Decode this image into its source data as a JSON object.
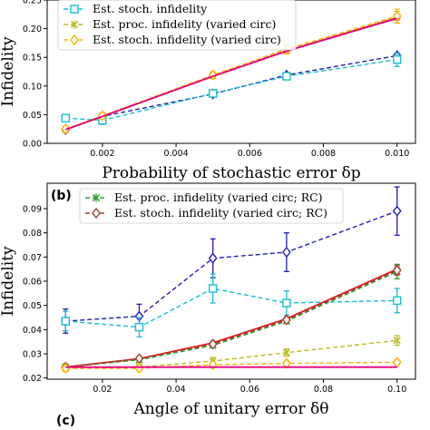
{
  "chart_data": [
    {
      "type": "line",
      "panel_label": "",
      "xlabel": "Probability of stochastic error δp",
      "ylabel": "Infidelity",
      "xlim": [
        0.0005,
        0.0105
      ],
      "ylim": [
        0.0,
        0.25
      ],
      "xticks": [
        "0.002",
        "0.004",
        "0.006",
        "0.008",
        "0.010"
      ],
      "xtick_values": [
        0.002,
        0.004,
        0.006,
        0.008,
        0.01
      ],
      "yticks": [
        "0.00",
        "0.05",
        "0.10",
        "0.15",
        "0.20",
        "0.25"
      ],
      "ytick_values": [
        0.0,
        0.05,
        0.1,
        0.15,
        0.2,
        0.25
      ],
      "legend_placement": "top-left",
      "legend": [
        {
          "label": "Est. stoch. infidelity",
          "color": "#17becf",
          "marker": "square",
          "series_index": 1
        },
        {
          "label": "Est. proc. infidelity (varied circ)",
          "color": "#bcbd22",
          "marker": "x",
          "series_index": 3
        },
        {
          "label": "Est. stoch. infidelity (varied circ)",
          "color": "#ffb000",
          "marker": "diamond",
          "series_index": 4
        }
      ],
      "x": [
        0.001,
        0.002,
        0.005,
        0.007,
        0.01
      ],
      "series": [
        {
          "color": "#1f1fb4",
          "dash": true,
          "marker": "diamond",
          "values": [
            0.024,
            0.047,
            0.086,
            0.119,
            0.153
          ],
          "err": [
            0,
            0,
            0,
            0,
            0
          ]
        },
        {
          "color": "#17becf",
          "dash": true,
          "marker": "square",
          "values": [
            0.044,
            0.04,
            0.087,
            0.117,
            0.146
          ],
          "err": [
            0.005,
            0.007,
            0.005,
            0.005,
            0.012
          ]
        },
        {
          "color": "#e31a1c",
          "dash": false,
          "marker": "dot",
          "values": [
            0.024,
            0.047,
            0.117,
            0.161,
            0.219
          ],
          "err": [
            0,
            0,
            0,
            0,
            0
          ]
        },
        {
          "color": "#bcbd22",
          "dash": true,
          "marker": "x",
          "values": [
            0.024,
            0.048,
            0.118,
            0.165,
            0.22
          ],
          "err": [
            0,
            0,
            0.005,
            0.006,
            0.01
          ]
        },
        {
          "color": "#ffb000",
          "dash": true,
          "marker": "diamond",
          "values": [
            0.025,
            0.048,
            0.119,
            0.164,
            0.222
          ],
          "err": [
            0.002,
            0.003,
            0.006,
            0.008,
            0.012
          ]
        },
        {
          "color": "#e6007e",
          "dash": false,
          "marker": "none",
          "values": [
            0.024,
            0.047,
            0.117,
            0.161,
            0.218
          ],
          "err": [
            0,
            0,
            0,
            0,
            0
          ]
        }
      ]
    },
    {
      "type": "line",
      "panel_label": "(b)",
      "xlabel": "Angle of unitary error δθ",
      "ylabel": "Infidelity",
      "xlim": [
        0.005,
        0.105
      ],
      "ylim": [
        0.0195,
        0.1005
      ],
      "xticks": [
        "0.02",
        "0.04",
        "0.06",
        "0.08",
        "0.10"
      ],
      "xtick_values": [
        0.02,
        0.04,
        0.06,
        0.08,
        0.1
      ],
      "yticks": [
        "0.02",
        "0.03",
        "0.04",
        "0.05",
        "0.06",
        "0.07",
        "0.08",
        "0.09"
      ],
      "ytick_values": [
        0.02,
        0.03,
        0.04,
        0.05,
        0.06,
        0.07,
        0.08,
        0.09
      ],
      "legend_placement": "top-left",
      "legend": [
        {
          "label": "Est. proc. infidelity (varied circ; RC)",
          "color": "#2ca02c",
          "marker": "x",
          "series_index": 3
        },
        {
          "label": "Est. stoch. infidelity (varied circ; RC)",
          "color": "#a0402a",
          "marker": "diamond",
          "series_index": 4
        }
      ],
      "x": [
        0.01,
        0.03,
        0.05,
        0.07,
        0.1
      ],
      "series": [
        {
          "color": "#1f1fb4",
          "dash": true,
          "marker": "diamond",
          "values": [
            0.0435,
            0.0455,
            0.0695,
            0.072,
            0.089
          ],
          "err": [
            0.005,
            0.005,
            0.008,
            0.008,
            0.01
          ]
        },
        {
          "color": "#17becf",
          "dash": true,
          "marker": "square",
          "values": [
            0.0435,
            0.041,
            0.057,
            0.051,
            0.052
          ],
          "err": [
            0.004,
            0.004,
            0.006,
            0.005,
            0.005
          ]
        },
        {
          "color": "#e31a1c",
          "dash": false,
          "marker": "dot",
          "values": [
            0.0245,
            0.028,
            0.0345,
            0.0445,
            0.065
          ],
          "err": [
            0,
            0,
            0,
            0,
            0
          ]
        },
        {
          "color": "#2ca02c",
          "dash": true,
          "marker": "x",
          "values": [
            0.0245,
            0.0275,
            0.0335,
            0.0435,
            0.064
          ],
          "err": [
            0,
            0,
            0,
            0,
            0.003
          ]
        },
        {
          "color": "#a0402a",
          "dash": true,
          "marker": "diamond",
          "values": [
            0.0245,
            0.028,
            0.034,
            0.044,
            0.0645
          ],
          "err": [
            0,
            0,
            0,
            0,
            0.002
          ]
        },
        {
          "color": "#bcbd22",
          "dash": true,
          "marker": "x",
          "values": [
            0.024,
            0.0245,
            0.027,
            0.0305,
            0.0355
          ],
          "err": [
            0.001,
            0.001,
            0.0015,
            0.0015,
            0.002
          ]
        },
        {
          "color": "#ffb000",
          "dash": true,
          "marker": "diamond",
          "values": [
            0.024,
            0.024,
            0.0255,
            0.026,
            0.0265
          ],
          "err": [
            0.001,
            0.001,
            0.001,
            0.001,
            0.001
          ]
        },
        {
          "color": "#e6007e",
          "dash": false,
          "marker": "none",
          "values": [
            0.0245,
            0.0245,
            0.0245,
            0.0245,
            0.0245
          ],
          "err": [
            0,
            0,
            0,
            0,
            0
          ]
        }
      ]
    }
  ],
  "panel_c_label": "(c)"
}
